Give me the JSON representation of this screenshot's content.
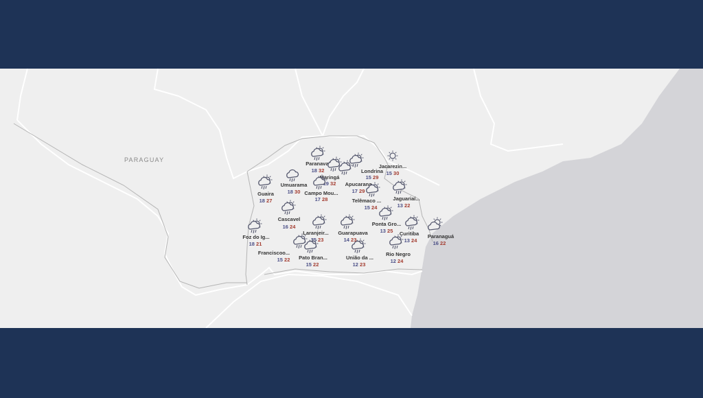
{
  "map": {
    "country_label": "PARAGUAY",
    "colors": {
      "header": "#1e3356",
      "land": "#efefef",
      "ocean": "#d4d4d8",
      "min_temp": "#4b4f86",
      "max_temp": "#a33b2f",
      "icon": "#55586e"
    },
    "cities": [
      {
        "name": "Paranavaí",
        "icon": "rain-sun-icon",
        "min": "18",
        "max": "32"
      },
      {
        "name": "Maringá",
        "icon": "rain-sun-icon",
        "min": "19",
        "max": "32"
      },
      {
        "name": "Apucarana",
        "icon": "rain-sun-icon",
        "min": "17",
        "max": "29"
      },
      {
        "name": "Londrina",
        "icon": "rain-sun-icon",
        "min": "15",
        "max": "29"
      },
      {
        "name": "Jacarezin...",
        "icon": "sun-icon",
        "min": "15",
        "max": "30"
      },
      {
        "name": "Umuarama",
        "icon": "rain-cloud-icon",
        "min": "18",
        "max": "30"
      },
      {
        "name": "Campo Mou...",
        "icon": "rain-sun-icon",
        "min": "17",
        "max": "28"
      },
      {
        "name": "Guaira",
        "icon": "rain-sun-icon",
        "min": "18",
        "max": "27"
      },
      {
        "name": "Telêmaco ...",
        "icon": "rain-sun-icon",
        "min": "15",
        "max": "24"
      },
      {
        "name": "Jaguariaí...",
        "icon": "rain-sun-icon",
        "min": "13",
        "max": "22"
      },
      {
        "name": "Cascavel",
        "icon": "rain-sun-icon",
        "min": "16",
        "max": "24"
      },
      {
        "name": "Ponta Gro...",
        "icon": "rain-sun-icon",
        "min": "13",
        "max": "25"
      },
      {
        "name": "Curitiba",
        "icon": "rain-sun-icon",
        "min": "13",
        "max": "24"
      },
      {
        "name": "Paranaguá",
        "icon": "cloud-sun-icon",
        "min": "16",
        "max": "22"
      },
      {
        "name": "Foz do Ig...",
        "icon": "rain-sun-icon",
        "min": "18",
        "max": "21"
      },
      {
        "name": "Laranjeir...",
        "icon": "rain-sun-icon",
        "min": "15",
        "max": "23"
      },
      {
        "name": "Guarapuava",
        "icon": "rain-sun-icon",
        "min": "14",
        "max": "23"
      },
      {
        "name": "Franciscoo...",
        "icon": "rain-sun-icon",
        "min": "15",
        "max": "22"
      },
      {
        "name": "Pato Bran...",
        "icon": "rain-sun-icon",
        "min": "15",
        "max": "22"
      },
      {
        "name": "União da ...",
        "icon": "rain-sun-icon",
        "min": "12",
        "max": "23"
      },
      {
        "name": "Rio Negro",
        "icon": "rain-sun-icon",
        "min": "12",
        "max": "24"
      }
    ]
  }
}
